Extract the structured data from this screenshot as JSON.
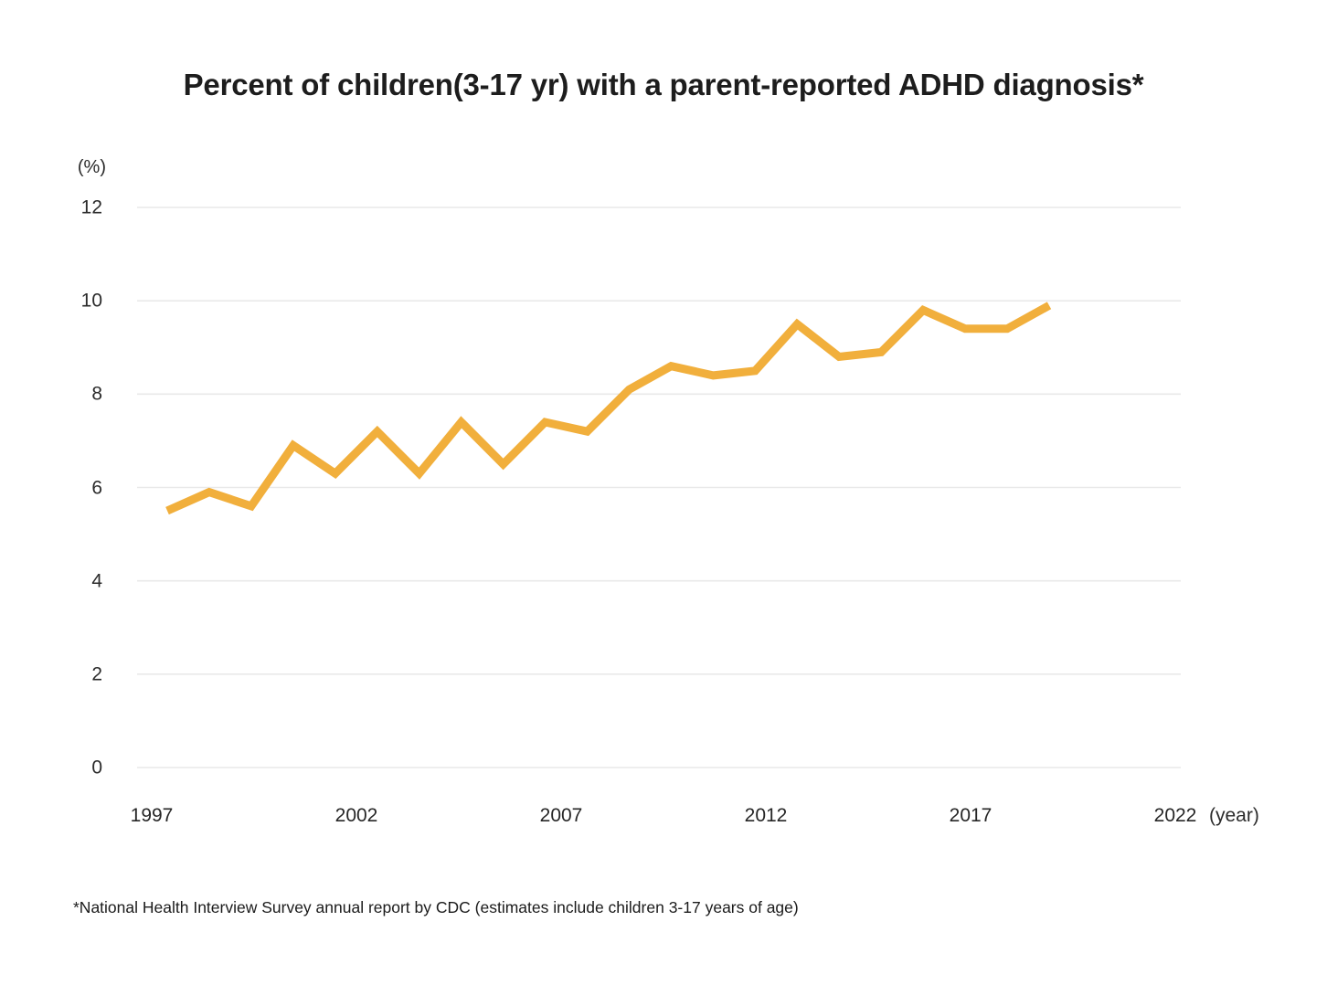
{
  "chart": {
    "title": "Percent of children(3-17 yr) with a parent-reported ADHD diagnosis*",
    "y_unit": "(%)",
    "x_unit": "(year)",
    "footnote": "*National Health Interview Survey annual report by CDC (estimates include children 3-17 years of age)"
  },
  "chart_data": {
    "type": "line",
    "title": "Percent of children(3-17 yr) with a parent-reported ADHD diagnosis*",
    "x": [
      1997,
      1998,
      1999,
      2000,
      2001,
      2002,
      2003,
      2004,
      2005,
      2006,
      2007,
      2008,
      2009,
      2010,
      2011,
      2012,
      2013,
      2014,
      2015,
      2016,
      2017,
      2018
    ],
    "series": [
      {
        "name": "Parent-reported ADHD diagnosis, children 3-17 yr (%)",
        "values": [
          5.5,
          5.9,
          5.6,
          6.9,
          6.3,
          7.2,
          6.3,
          7.4,
          6.5,
          7.4,
          7.2,
          8.1,
          8.6,
          8.4,
          8.5,
          9.5,
          8.8,
          8.9,
          9.8,
          9.4,
          9.4,
          9.9
        ]
      }
    ],
    "xlabel": "(year)",
    "ylabel": "(%)",
    "x_tick_labels": [
      "1997",
      "2002",
      "2007",
      "2012",
      "2017",
      "2022"
    ],
    "x_tick_years": [
      1997,
      2002,
      2007,
      2012,
      2017,
      2022
    ],
    "y_tick_labels": [
      "12",
      "10",
      "8",
      "6",
      "4",
      "2",
      "0"
    ],
    "y_tick_values": [
      12,
      10,
      8,
      6,
      4,
      2,
      0
    ],
    "ylim": [
      0,
      12
    ],
    "xlim": [
      1997,
      2022
    ],
    "grid": "horizontal",
    "legend": "none",
    "line_color": "#F1AF3C",
    "grid_color": "#E9E9E9",
    "background_color": "#FFFFFF"
  }
}
